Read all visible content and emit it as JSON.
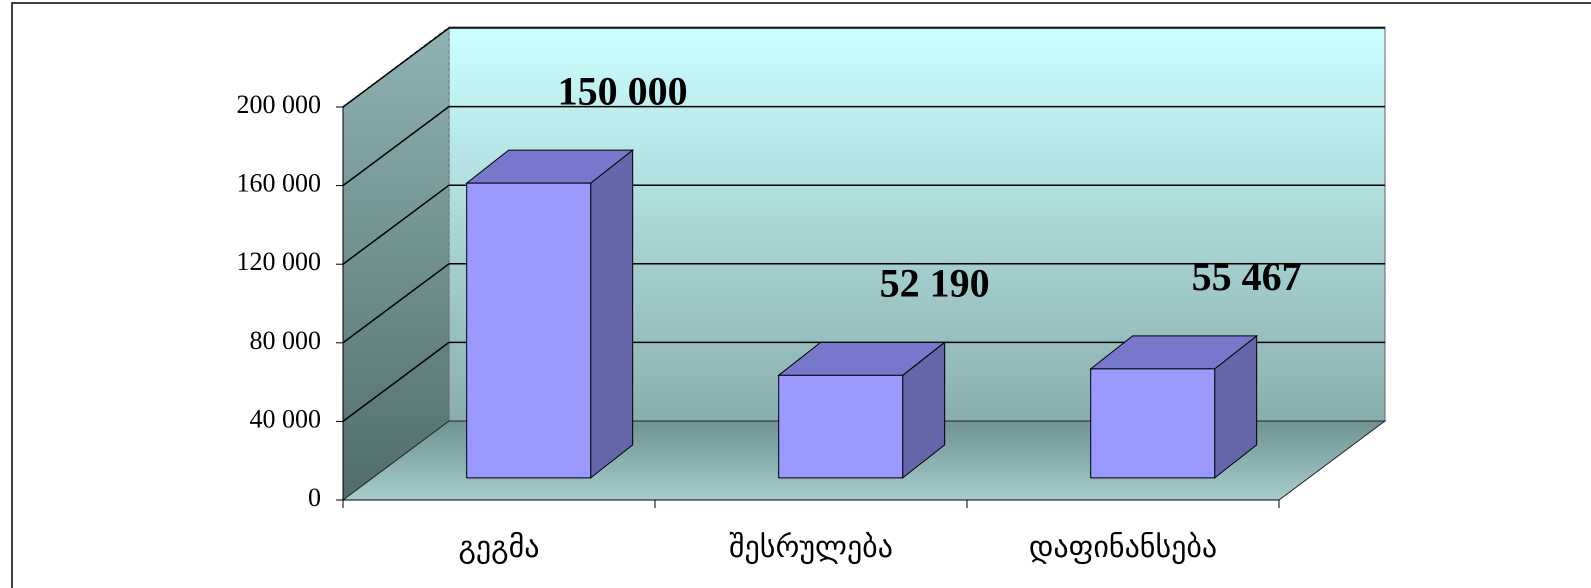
{
  "chart_data": {
    "type": "bar3d",
    "categories": [
      "გეგმა",
      "შესრულება",
      "დაფინანსება"
    ],
    "values": [
      150000,
      52190,
      55467
    ],
    "value_labels": [
      "150 000",
      "52 190",
      "55 467"
    ],
    "ylim": [
      0,
      200000
    ],
    "yticks": [
      0,
      {
        "value": 40000,
        "label": "40 000"
      },
      {
        "value": 80000,
        "label": "80 000"
      },
      {
        "value": 120000,
        "label": "120 000"
      },
      {
        "value": 160000,
        "label": "160 000"
      },
      {
        "value": 200000,
        "label": "200 000"
      }
    ],
    "grid": true,
    "color": "#9999ff"
  }
}
